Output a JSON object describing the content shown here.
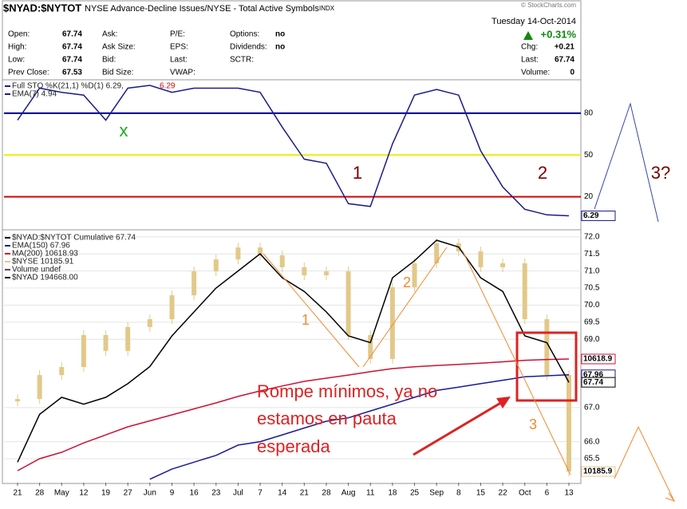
{
  "header": {
    "symbol": "$NYAD:$NYTOT",
    "description": "NYSE Advance-Decline Issues/NYSE - Total Active Symbols",
    "exchange": "INDX",
    "date": "Tuesday  14-Oct-2014",
    "source": "© StockCharts.com",
    "change": "+0.31%",
    "columns": [
      [
        {
          "label": "Open:",
          "value": "67.74"
        },
        {
          "label": "High:",
          "value": "67.74"
        },
        {
          "label": "Low:",
          "value": "67.74"
        },
        {
          "label": "Prev Close:",
          "value": "67.53"
        }
      ],
      [
        {
          "label": "Ask:"
        },
        {
          "label": "Ask Size:"
        },
        {
          "label": "Bid:"
        },
        {
          "label": "Bid Size:"
        }
      ],
      [
        {
          "label": "P/E:"
        },
        {
          "label": "EPS:"
        },
        {
          "label": "Last:"
        },
        {
          "label": "VWAP:"
        }
      ],
      [
        {
          "label": "Options:",
          "value": "no"
        },
        {
          "label": "Dividends:",
          "value": "no"
        },
        {
          "label": "SCTR:"
        }
      ],
      [
        {
          "label": "Chg:",
          "value": "+0.21"
        },
        {
          "label": "Last:",
          "value": "67.74"
        },
        {
          "label": "Volume:",
          "value": "0"
        }
      ]
    ]
  },
  "chart_data": [
    {
      "type": "line",
      "ylim": [
        -2,
        104
      ],
      "yticks": [
        20,
        50,
        80
      ],
      "tick_colors": [
        "#dd0000",
        "#eeee00",
        "#000099"
      ],
      "series": [
        {
          "name": "Full STO %K(21,1) %D(1) 6.29,",
          "color": "#1a1a8c",
          "end_label": "6.29",
          "values": [
            75,
            98,
            95,
            93,
            75,
            98,
            100,
            95,
            98,
            98,
            98,
            95,
            70,
            47,
            44,
            15,
            13,
            58,
            93,
            97,
            93,
            53,
            27,
            11,
            7,
            6.29
          ]
        }
      ],
      "legend_extra": [
        {
          "text": "6.29",
          "color": "#dd0000"
        },
        {
          "text": "EMA(7) 4.94",
          "color": "#1a1a8c"
        }
      ]
    },
    {
      "type": "line",
      "categories": [
        "21",
        "28",
        "May",
        "12",
        "19",
        "27",
        "Jun",
        "9",
        "16",
        "23",
        "Jul",
        "7",
        "14",
        "21",
        "28",
        "Aug",
        "11",
        "18",
        "25",
        "Sep",
        "8",
        "15",
        "22",
        "Oct",
        "6",
        "13"
      ],
      "ylim": [
        64.8,
        72.16
      ],
      "y2lim": [
        10143,
        11110
      ],
      "yticks": [
        {
          "value": 65.5,
          "label": "65.5"
        },
        {
          "value": 66,
          "label": "66.0"
        },
        {
          "value": 67,
          "label": "67.0"
        },
        {
          "value": 69,
          "label": "69.0"
        },
        {
          "value": 69.5,
          "label": "69.5"
        },
        {
          "value": 70,
          "label": "70.0"
        },
        {
          "value": 70.5,
          "label": "70.5"
        },
        {
          "value": 71,
          "label": "71.0"
        },
        {
          "value": 71.5,
          "label": "71.5"
        },
        {
          "value": 72,
          "label": "72.0"
        }
      ],
      "series": [
        {
          "name": "$NYSE 10185.91",
          "color": "#e2c98a",
          "axis": "y2",
          "kind": "bar",
          "end_label": "10185.9",
          "values": [
            10465,
            10557,
            10588,
            10711,
            10650,
            10742,
            10772,
            10864,
            10956,
            11002,
            11048,
            11018,
            10972,
            10941,
            10956,
            10711,
            10619,
            10895,
            10987,
            11064,
            11033,
            10972,
            10987,
            10772,
            10557,
            10185.91
          ]
        },
        {
          "name": "MA(200) 10618.93",
          "color": "#cc1133",
          "axis": "y2",
          "end_label": "10618.9",
          "values": [
            10189,
            10235,
            10260,
            10296,
            10327,
            10358,
            10381,
            10404,
            10427,
            10450,
            10475,
            10496,
            10515,
            10533,
            10545,
            10557,
            10570,
            10582,
            10589,
            10594,
            10598,
            10603,
            10608,
            10614,
            10617,
            10618.93
          ]
        },
        {
          "name": "EMA(150) 67.96",
          "color": "#1a1a99",
          "end_label": "67.96",
          "values": [
            null,
            null,
            null,
            null,
            null,
            null,
            64.9,
            65.2,
            65.4,
            65.6,
            65.9,
            66.0,
            66.2,
            66.4,
            66.6,
            66.7,
            66.9,
            67.1,
            67.3,
            67.5,
            67.6,
            67.7,
            67.8,
            67.9,
            67.93,
            67.96
          ]
        },
        {
          "name": "$NYAD:$NYTOT Cumulative 67.74",
          "color": "#000000",
          "end_label": "67.74",
          "values": [
            65.4,
            66.8,
            67.3,
            67.1,
            67.3,
            67.7,
            68.2,
            69.1,
            69.8,
            70.5,
            71.0,
            71.5,
            70.8,
            70.4,
            69.8,
            69.1,
            68.9,
            70.8,
            71.3,
            71.9,
            71.7,
            70.8,
            70.4,
            69.1,
            68.9,
            67.74
          ]
        }
      ],
      "legend_extra": [
        {
          "text": "Volume undef",
          "color": "#555555"
        },
        {
          "text": "$NYAD 194668.00",
          "color": "#000000"
        }
      ]
    }
  ],
  "annotations": {
    "stoch_x": "x",
    "stoch_1": "1",
    "stoch_2": "2",
    "stoch_3": "3?",
    "wave_1": "1",
    "wave_2": "2",
    "wave_3": "3",
    "comment": [
      "Rompe mínimos, ya no",
      "estamos en pauta",
      "esperada"
    ]
  }
}
